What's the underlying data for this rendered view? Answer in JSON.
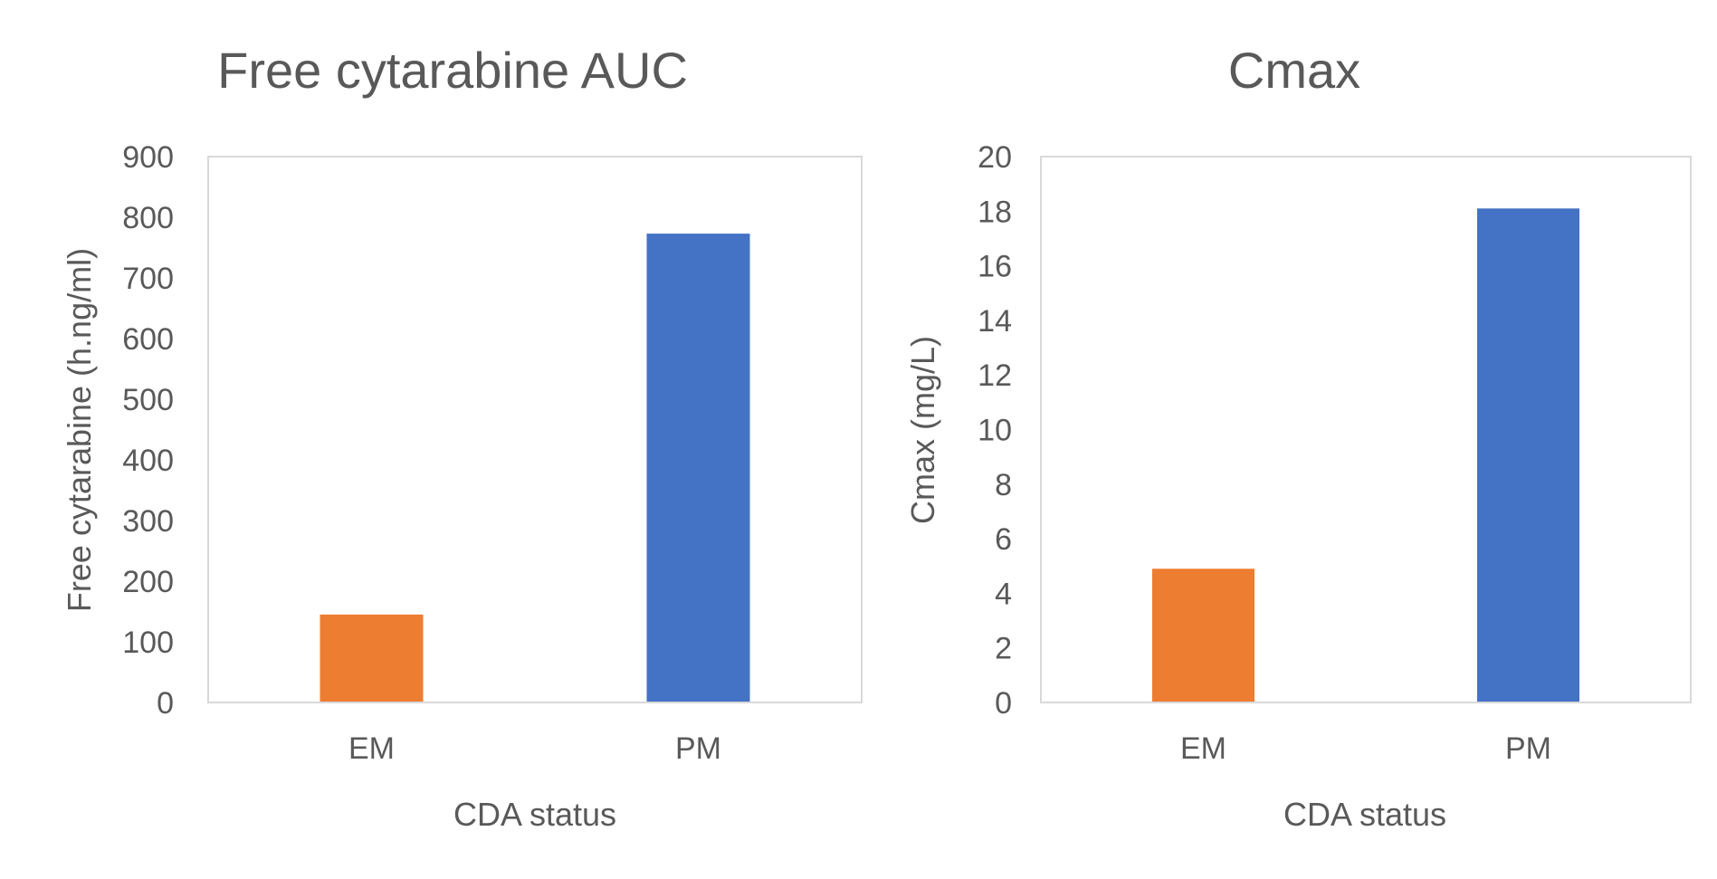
{
  "chart_data": [
    {
      "type": "bar",
      "title": "Free cytarabine AUC",
      "xlabel": "CDA status",
      "ylabel": "Free cytarabine (h.ng/ml)",
      "categories": [
        "EM",
        "PM"
      ],
      "values": [
        145,
        773
      ],
      "colors": [
        "#ED7D31",
        "#4472C4"
      ],
      "ylim": [
        0,
        900
      ],
      "yticks": [
        0,
        100,
        200,
        300,
        400,
        500,
        600,
        700,
        800,
        900
      ],
      "grid": false
    },
    {
      "type": "bar",
      "title": "Cmax",
      "xlabel": "CDA status",
      "ylabel": "Cmax (mg/L)",
      "categories": [
        "EM",
        "PM"
      ],
      "values": [
        4.9,
        18.1
      ],
      "colors": [
        "#ED7D31",
        "#4472C4"
      ],
      "ylim": [
        0,
        20
      ],
      "yticks": [
        0,
        2,
        4,
        6,
        8,
        10,
        12,
        14,
        16,
        18,
        20
      ],
      "grid": false
    }
  ]
}
